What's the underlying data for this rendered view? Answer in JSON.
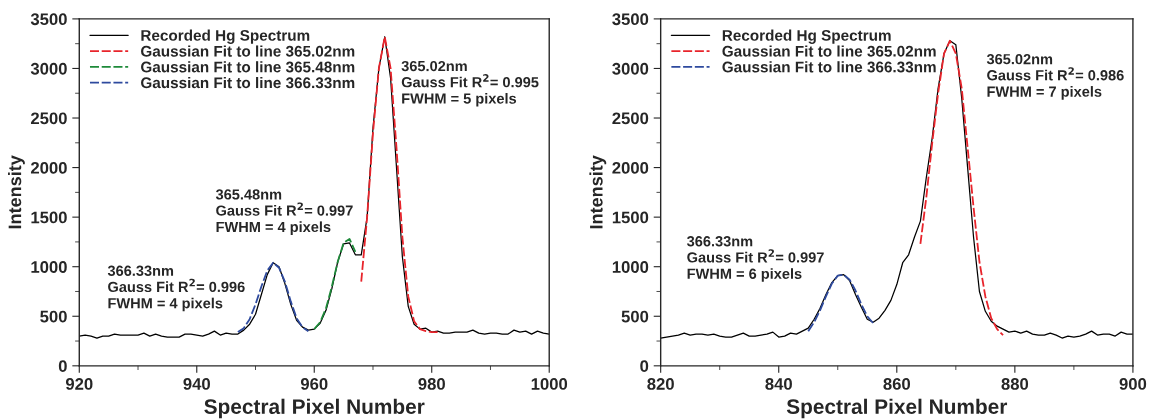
{
  "chart_data": [
    {
      "type": "line",
      "xlabel": "Spectral Pixel Number",
      "ylabel": "Intensity",
      "xlim": [
        920,
        1000
      ],
      "ylim": [
        0,
        3500
      ],
      "xticks": [
        920,
        940,
        960,
        980,
        1000
      ],
      "yticks": [
        0,
        500,
        1000,
        1500,
        2000,
        2500,
        3000,
        3500
      ],
      "grid": false,
      "legend": "top left",
      "marker": "none",
      "series": [
        {
          "name": "Recorded Hg Spectrum",
          "color": "#000000",
          "line_style": "solid",
          "x": [
            920,
            921,
            922,
            923,
            924,
            925,
            926,
            927,
            928,
            929,
            930,
            931,
            932,
            933,
            934,
            935,
            936,
            937,
            938,
            939,
            940,
            941,
            942,
            943,
            944,
            945,
            946,
            947,
            948,
            949,
            950,
            951,
            952,
            953,
            954,
            955,
            956,
            957,
            958,
            959,
            960,
            961,
            962,
            963,
            964,
            965,
            966,
            967,
            968,
            969,
            970,
            971,
            972,
            973,
            974,
            975,
            976,
            977,
            978,
            979,
            980,
            981,
            982,
            983,
            984,
            985,
            986,
            987,
            988,
            989,
            990,
            991,
            992,
            993,
            994,
            995,
            996,
            997,
            998,
            999,
            1000
          ],
          "values": [
            300,
            310,
            300,
            280,
            300,
            300,
            320,
            310,
            310,
            310,
            310,
            330,
            300,
            320,
            300,
            290,
            290,
            290,
            320,
            320,
            310,
            300,
            320,
            350,
            310,
            330,
            320,
            320,
            360,
            420,
            520,
            720,
            920,
            1040,
            1000,
            830,
            620,
            460,
            390,
            360,
            370,
            430,
            560,
            780,
            1050,
            1230,
            1240,
            1120,
            1120,
            1500,
            2400,
            3000,
            3320,
            2900,
            2000,
            1100,
            600,
            420,
            370,
            380,
            340,
            350,
            330,
            330,
            340,
            340,
            340,
            360,
            330,
            320,
            330,
            330,
            320,
            320,
            360,
            340,
            350,
            320,
            350,
            330,
            320
          ]
        },
        {
          "name": "Gaussian Fit to line 365.02nm",
          "color": "#e8242b",
          "line_style": "dashed",
          "x": [
            968,
            969,
            970,
            971,
            972,
            973,
            974,
            975,
            976,
            977,
            978,
            979,
            980,
            981
          ],
          "values": [
            850,
            1500,
            2350,
            3000,
            3320,
            3000,
            2200,
            1300,
            700,
            450,
            370,
            350,
            340,
            340
          ]
        },
        {
          "name": "Gaussian Fit to line 365.48nm",
          "color": "#1e8a3a",
          "line_style": "dashed",
          "x": [
            960,
            961,
            962,
            963,
            964,
            965,
            966,
            967
          ],
          "values": [
            370,
            440,
            580,
            800,
            1050,
            1240,
            1280,
            1150
          ]
        },
        {
          "name": "Gaussian Fit to line 366.33nm",
          "color": "#2e4a9e",
          "line_style": "dashed",
          "x": [
            947,
            948,
            949,
            950,
            951,
            952,
            953,
            954,
            955,
            956,
            957,
            958,
            959
          ],
          "values": [
            340,
            380,
            470,
            620,
            800,
            960,
            1040,
            990,
            850,
            650,
            480,
            390,
            350
          ]
        }
      ],
      "annotations": [
        "365.02nm\nGauss Fit R$^{2}$= 0.995\nFWHM = 5 pixels",
        "365.48nm\nGauss Fit R$^{2}$= 0.997\nFWHM = 4 pixels",
        "366.33nm\nGauss Fit R$^{2}$= 0.996\nFWHM = 4 pixels"
      ]
    },
    {
      "type": "line",
      "xlabel": "Spectral Pixel Number",
      "ylabel": "Intensity",
      "xlim": [
        820,
        900
      ],
      "ylim": [
        0,
        3500
      ],
      "xticks": [
        820,
        840,
        860,
        880,
        900
      ],
      "yticks": [
        0,
        500,
        1000,
        1500,
        2000,
        2500,
        3000,
        3500
      ],
      "grid": false,
      "legend": "top left",
      "marker": "none",
      "series": [
        {
          "name": "Recorded Hg Spectrum",
          "color": "#000000",
          "line_style": "solid",
          "x": [
            820,
            821,
            822,
            823,
            824,
            825,
            826,
            827,
            828,
            829,
            830,
            831,
            832,
            833,
            834,
            835,
            836,
            837,
            838,
            839,
            840,
            841,
            842,
            843,
            844,
            845,
            846,
            847,
            848,
            849,
            850,
            851,
            852,
            853,
            854,
            855,
            856,
            857,
            858,
            859,
            860,
            861,
            862,
            863,
            864,
            865,
            866,
            867,
            868,
            869,
            870,
            871,
            872,
            873,
            874,
            875,
            876,
            877,
            878,
            879,
            880,
            881,
            882,
            883,
            884,
            885,
            886,
            887,
            888,
            889,
            890,
            891,
            892,
            893,
            894,
            895,
            896,
            897,
            898,
            899,
            900
          ],
          "values": [
            280,
            290,
            300,
            310,
            330,
            310,
            320,
            320,
            310,
            320,
            300,
            290,
            290,
            310,
            330,
            300,
            300,
            310,
            320,
            340,
            290,
            300,
            330,
            320,
            350,
            380,
            470,
            580,
            720,
            840,
            910,
            920,
            860,
            720,
            590,
            470,
            440,
            480,
            560,
            660,
            820,
            1040,
            1120,
            1300,
            1460,
            1900,
            2300,
            2800,
            3150,
            3280,
            3240,
            2700,
            2000,
            1300,
            750,
            550,
            450,
            400,
            370,
            340,
            350,
            330,
            350,
            320,
            310,
            310,
            330,
            310,
            280,
            300,
            290,
            300,
            320,
            350,
            310,
            320,
            320,
            300,
            340,
            320,
            320
          ]
        },
        {
          "name": "Gaussian Fit to line 365.02nm",
          "color": "#e8242b",
          "line_style": "dashed",
          "x": [
            864,
            865,
            866,
            867,
            868,
            869,
            870,
            871,
            872,
            873,
            874,
            875,
            876,
            877,
            878
          ],
          "values": [
            1230,
            1700,
            2250,
            2750,
            3150,
            3280,
            3150,
            2800,
            2200,
            1600,
            1050,
            700,
            480,
            370,
            310
          ]
        },
        {
          "name": "Gaussian Fit to line 366.33nm",
          "color": "#2e4a9e",
          "line_style": "dashed",
          "x": [
            845,
            846,
            847,
            848,
            849,
            850,
            851,
            852,
            853,
            854,
            855,
            856
          ],
          "values": [
            350,
            440,
            560,
            700,
            830,
            910,
            920,
            870,
            760,
            620,
            500,
            430
          ]
        }
      ],
      "annotations": [
        "365.02nm\nGauss Fit R$^{2}$= 0.986\nFWHM = 7 pixels",
        "366.33nm\nGauss Fit R$^{2}$= 0.997\nFWHM = 6 pixels"
      ]
    }
  ]
}
